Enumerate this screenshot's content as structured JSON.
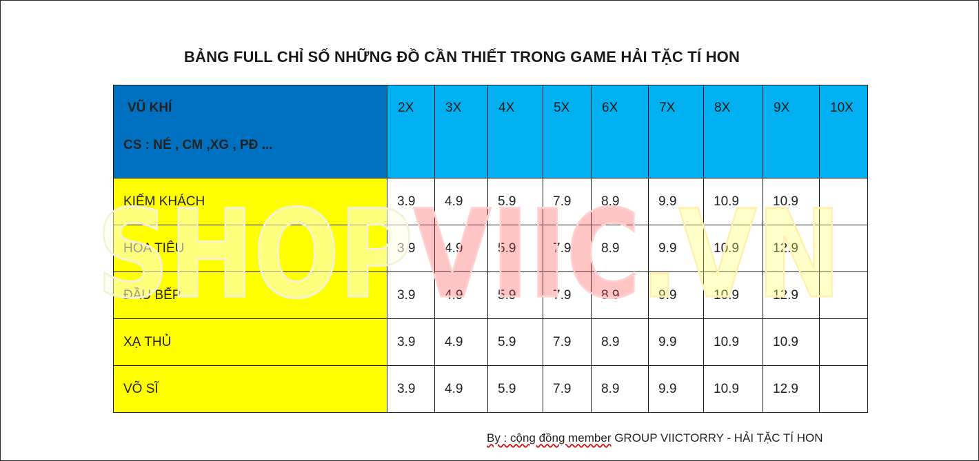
{
  "title": "BẢNG FULL CHỈ SỐ NHỮNG ĐỒ CẦN THIẾT TRONG GAME HẢI TẶC TÍ HON",
  "watermark": "SHOPVIIC.VN",
  "table": {
    "header_weapon": "VŨ KHÍ",
    "header_stats": "CS : NÉ , CM ,XG , PĐ  ...",
    "columns": [
      "2X",
      "3X",
      "4X",
      "5X",
      "6X",
      "7X",
      "8X",
      "9X",
      "10X"
    ],
    "rows": [
      {
        "label": "KIẾM KHÁCH",
        "values": [
          "3.9",
          "4.9",
          "5.9",
          "7.9",
          "8.9",
          "9.9",
          "10.9",
          "10.9",
          ""
        ]
      },
      {
        "label": "HOA TIÊU",
        "values": [
          "3.9",
          "4.9",
          "5.9",
          "7.9",
          "8.9",
          "9.9",
          "10.9",
          "12.9",
          ""
        ]
      },
      {
        "label": "ĐẦU BẾP",
        "values": [
          "3.9",
          "4.9",
          "5.9",
          "7.9",
          "8.9",
          "9.9",
          "10.9",
          "12.9",
          ""
        ]
      },
      {
        "label": "XẠ THỦ",
        "values": [
          "3.9",
          "4.9",
          "5.9",
          "7.9",
          "8.9",
          "9.9",
          "10.9",
          "10.9",
          ""
        ]
      },
      {
        "label": "VÕ SĨ",
        "values": [
          "3.9",
          "4.9",
          "5.9",
          "7.9",
          "8.9",
          "9.9",
          "10.9",
          "12.9",
          ""
        ]
      }
    ]
  },
  "credit": {
    "prefix": "By : cộng đồng member",
    "suffix": " GROUP VIICTORRY - HẢI TẶC TÍ HON"
  },
  "colors": {
    "header_dark_blue": "#0070c0",
    "header_light_blue": "#00b0f0",
    "row_label_yellow": "#ffff00"
  }
}
